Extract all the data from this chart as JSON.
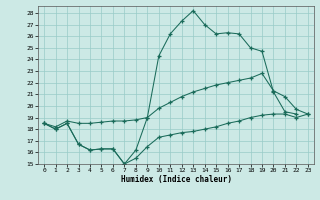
{
  "xlabel": "Humidex (Indice chaleur)",
  "background_color": "#cce9e5",
  "grid_color": "#99ccc8",
  "line_color": "#1a6b5a",
  "xlim": [
    -0.5,
    23.5
  ],
  "ylim": [
    15,
    28.6
  ],
  "yticks": [
    15,
    16,
    17,
    18,
    19,
    20,
    21,
    22,
    23,
    24,
    25,
    26,
    27,
    28
  ],
  "xticks": [
    0,
    1,
    2,
    3,
    4,
    5,
    6,
    7,
    8,
    9,
    10,
    11,
    12,
    13,
    14,
    15,
    16,
    17,
    18,
    19,
    20,
    21,
    22,
    23
  ],
  "line1_x": [
    0,
    1,
    2,
    3,
    4,
    5,
    6,
    7,
    8,
    9,
    10,
    11,
    12,
    13,
    14,
    15,
    16,
    17,
    18,
    19,
    20,
    21,
    22,
    23
  ],
  "line1_y": [
    18.5,
    18.0,
    18.5,
    16.7,
    16.2,
    16.3,
    16.3,
    15.0,
    16.2,
    19.0,
    24.3,
    26.2,
    27.3,
    28.2,
    27.0,
    26.2,
    26.3,
    26.2,
    25.0,
    24.7,
    21.2,
    19.5,
    19.3,
    null
  ],
  "line2_x": [
    0,
    1,
    2,
    3,
    4,
    5,
    6,
    7,
    8,
    9,
    10,
    11,
    12,
    13,
    14,
    15,
    16,
    17,
    18,
    19,
    20,
    21,
    22,
    23
  ],
  "line2_y": [
    18.5,
    18.2,
    18.7,
    18.5,
    18.5,
    18.6,
    18.7,
    18.7,
    18.8,
    19.0,
    19.8,
    20.3,
    20.8,
    21.2,
    21.5,
    21.8,
    22.0,
    22.2,
    22.4,
    22.8,
    21.3,
    20.8,
    19.7,
    19.3
  ],
  "line3_x": [
    0,
    1,
    2,
    3,
    4,
    5,
    6,
    7,
    8,
    9,
    10,
    11,
    12,
    13,
    14,
    15,
    16,
    17,
    18,
    19,
    20,
    21,
    22,
    23
  ],
  "line3_y": [
    18.5,
    18.0,
    18.5,
    16.7,
    16.2,
    16.3,
    16.3,
    15.0,
    15.5,
    16.5,
    17.3,
    17.5,
    17.7,
    17.8,
    18.0,
    18.2,
    18.5,
    18.7,
    19.0,
    19.2,
    19.3,
    19.3,
    19.0,
    19.3
  ]
}
